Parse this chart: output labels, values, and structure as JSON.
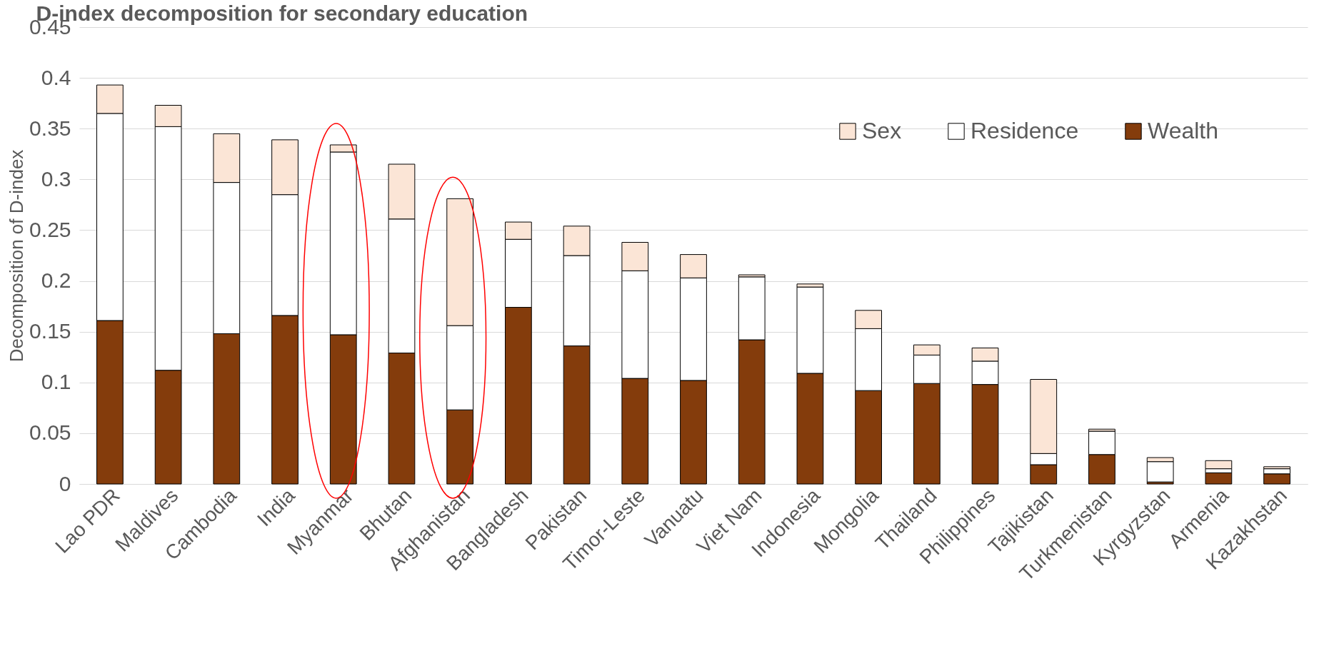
{
  "chart_data": {
    "type": "bar",
    "title": "D-index decomposition for secondary education",
    "ylabel": "Decomposition of D-index",
    "categories": [
      "Lao PDR",
      "Maldives",
      "Cambodia",
      "India",
      "Myanmar",
      "Bhutan",
      "Afghanistan",
      "Bangladesh",
      "Pakistan",
      "Timor-Leste",
      "Vanuatu",
      "Viet Nam",
      "Indonesia",
      "Mongolia",
      "Thailand",
      "Philippines",
      "Tajikistan",
      "Turkmenistan",
      "Kyrgyzstan",
      "Armenia",
      "Kazakhstan"
    ],
    "stacked": true,
    "series": [
      {
        "name": "Wealth",
        "color": "#843c0c",
        "values": [
          0.161,
          0.112,
          0.148,
          0.166,
          0.147,
          0.129,
          0.073,
          0.174,
          0.136,
          0.104,
          0.102,
          0.142,
          0.109,
          0.092,
          0.099,
          0.098,
          0.019,
          0.029,
          0.002,
          0.011,
          0.01
        ]
      },
      {
        "name": "Residence",
        "color": "#ffffff",
        "values": [
          0.204,
          0.24,
          0.149,
          0.119,
          0.18,
          0.132,
          0.083,
          0.067,
          0.089,
          0.106,
          0.101,
          0.062,
          0.085,
          0.061,
          0.028,
          0.023,
          0.011,
          0.023,
          0.02,
          0.004,
          0.005
        ]
      },
      {
        "name": "Sex",
        "color": "#fbe5d6",
        "values": [
          0.028,
          0.021,
          0.048,
          0.054,
          0.007,
          0.054,
          0.125,
          0.017,
          0.029,
          0.028,
          0.023,
          0.002,
          0.003,
          0.018,
          0.01,
          0.013,
          0.073,
          0.002,
          0.004,
          0.008,
          0.002
        ]
      }
    ],
    "ylim": [
      0,
      0.45
    ],
    "yticks": [
      0,
      0.05,
      0.1,
      0.15,
      0.2,
      0.25,
      0.3,
      0.35,
      0.4,
      0.45
    ],
    "grid": "y",
    "legend": "top right"
  }
}
